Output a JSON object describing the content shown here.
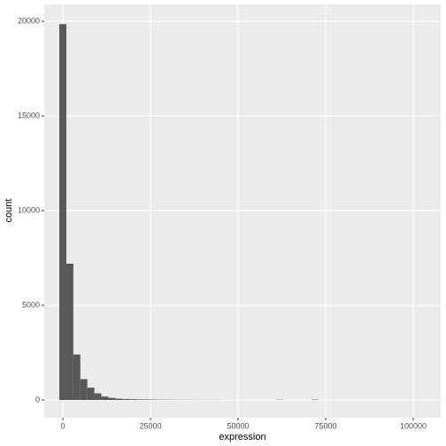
{
  "chart_data": {
    "type": "histogram",
    "x_label": "expression",
    "y_label": "count",
    "bins": [
      -1000,
      1000,
      3000,
      5000,
      7000,
      9000,
      11000,
      13000,
      15000,
      17000,
      19000,
      21000,
      23000,
      25000,
      27000,
      29000,
      31000,
      33000,
      35000,
      37000,
      39000,
      41000,
      43000,
      45000,
      47000,
      49000,
      51000,
      53000,
      55000,
      57000,
      59000,
      61000,
      63000,
      65000,
      67000,
      69000,
      71000,
      73000,
      75000,
      77000,
      79000,
      81000,
      83000,
      85000,
      87000,
      89000,
      91000,
      93000,
      95000,
      97000,
      99000,
      101000,
      103000
    ],
    "values": [
      19850,
      7200,
      2400,
      1100,
      650,
      350,
      180,
      110,
      70,
      50,
      40,
      30,
      25,
      20,
      15,
      12,
      10,
      8,
      8,
      6,
      5,
      5,
      4,
      3,
      3,
      2,
      0,
      0,
      0,
      0,
      0,
      15,
      0,
      0,
      0,
      0,
      20,
      0,
      0,
      0,
      0,
      0,
      0,
      0,
      0,
      0,
      0,
      0,
      0,
      0,
      0,
      0
    ],
    "color": "#595959",
    "xlim": [
      -5300,
      107830
    ],
    "ylim": [
      -935,
      20890
    ],
    "xticks": [
      0,
      25000,
      50000,
      75000,
      100000
    ],
    "yticks": [
      0,
      5000,
      10000,
      15000,
      20000
    ],
    "grid": true,
    "panel_color": "#ebebeb"
  }
}
